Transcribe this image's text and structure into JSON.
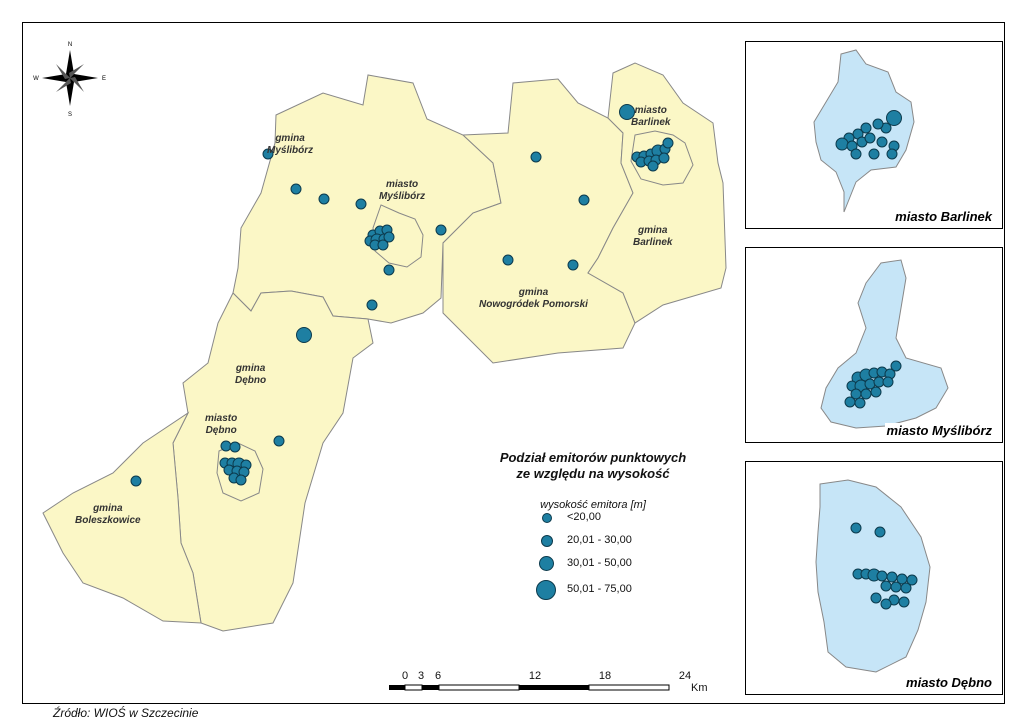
{
  "legend": {
    "title_line1": "Podział emitorów punktowych",
    "title_line2": "ze względu na wysokość",
    "subtitle": "wysokość emitora [m]",
    "classes": [
      {
        "label": "<20,00"
      },
      {
        "label": "20,01 - 30,00"
      },
      {
        "label": "30,01 - 50,00"
      },
      {
        "label": "50,01 - 75,00"
      }
    ]
  },
  "labels": {
    "gmina_mysliborz": [
      "gmina",
      "Myślibórz"
    ],
    "miasto_mysliborz": [
      "miasto",
      "Myślibórz"
    ],
    "miasto_barlinek": [
      "miasto",
      "Barlinek"
    ],
    "gmina_barlinek": [
      "gmina",
      "Barlinek"
    ],
    "gmina_nowogrodek": [
      "gmina",
      "Nowogródek Pomorski"
    ],
    "gmina_debno": [
      "gmina",
      "Dębno"
    ],
    "miasto_debno": [
      "miasto",
      "Dębno"
    ],
    "gmina_boleszkowice": [
      "gmina",
      "Boleszkowice"
    ]
  },
  "insets": {
    "barlinek": "miasto Barlinek",
    "mysliborz": "miasto Myślibórz",
    "debno": "miasto Dębno"
  },
  "source": "Źródło: WIOŚ w Szczecinie",
  "scale": {
    "ticks": [
      "0",
      "3",
      "6",
      "12",
      "18",
      "24"
    ],
    "unit": "Km"
  },
  "compass": {
    "n": "N",
    "s": "S",
    "e": "E",
    "w": "W"
  },
  "colors": {
    "municipality_fill": "#fbf7c6",
    "town_fill": "#c6e5f7",
    "point_fill": "#1e7fa2",
    "point_stroke": "#0c3a4c"
  }
}
